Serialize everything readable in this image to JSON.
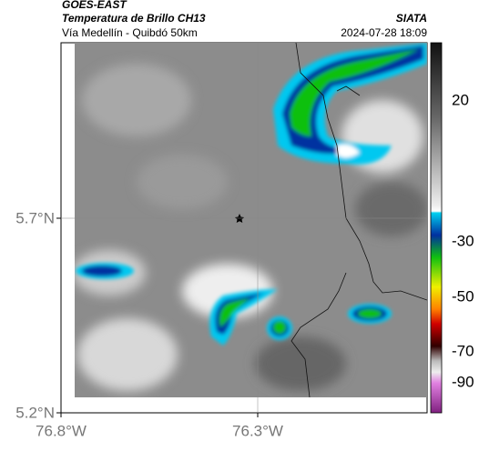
{
  "header": {
    "product": "GOES-EAST",
    "title": "Temperatura de Brillo CH13",
    "source": "SIATA",
    "subtitle": "Vía Medellín - Quibdó 50km",
    "datetime": "2024-07-28 18:09"
  },
  "axes": {
    "lat_ticks": [
      "5.7°N",
      "5.2°N"
    ],
    "lon_ticks": [
      "76.8°W",
      "76.3°W"
    ]
  },
  "colorbar": {
    "ticks": [
      "20",
      "-30",
      "-50",
      "-70",
      "-90"
    ]
  }
}
